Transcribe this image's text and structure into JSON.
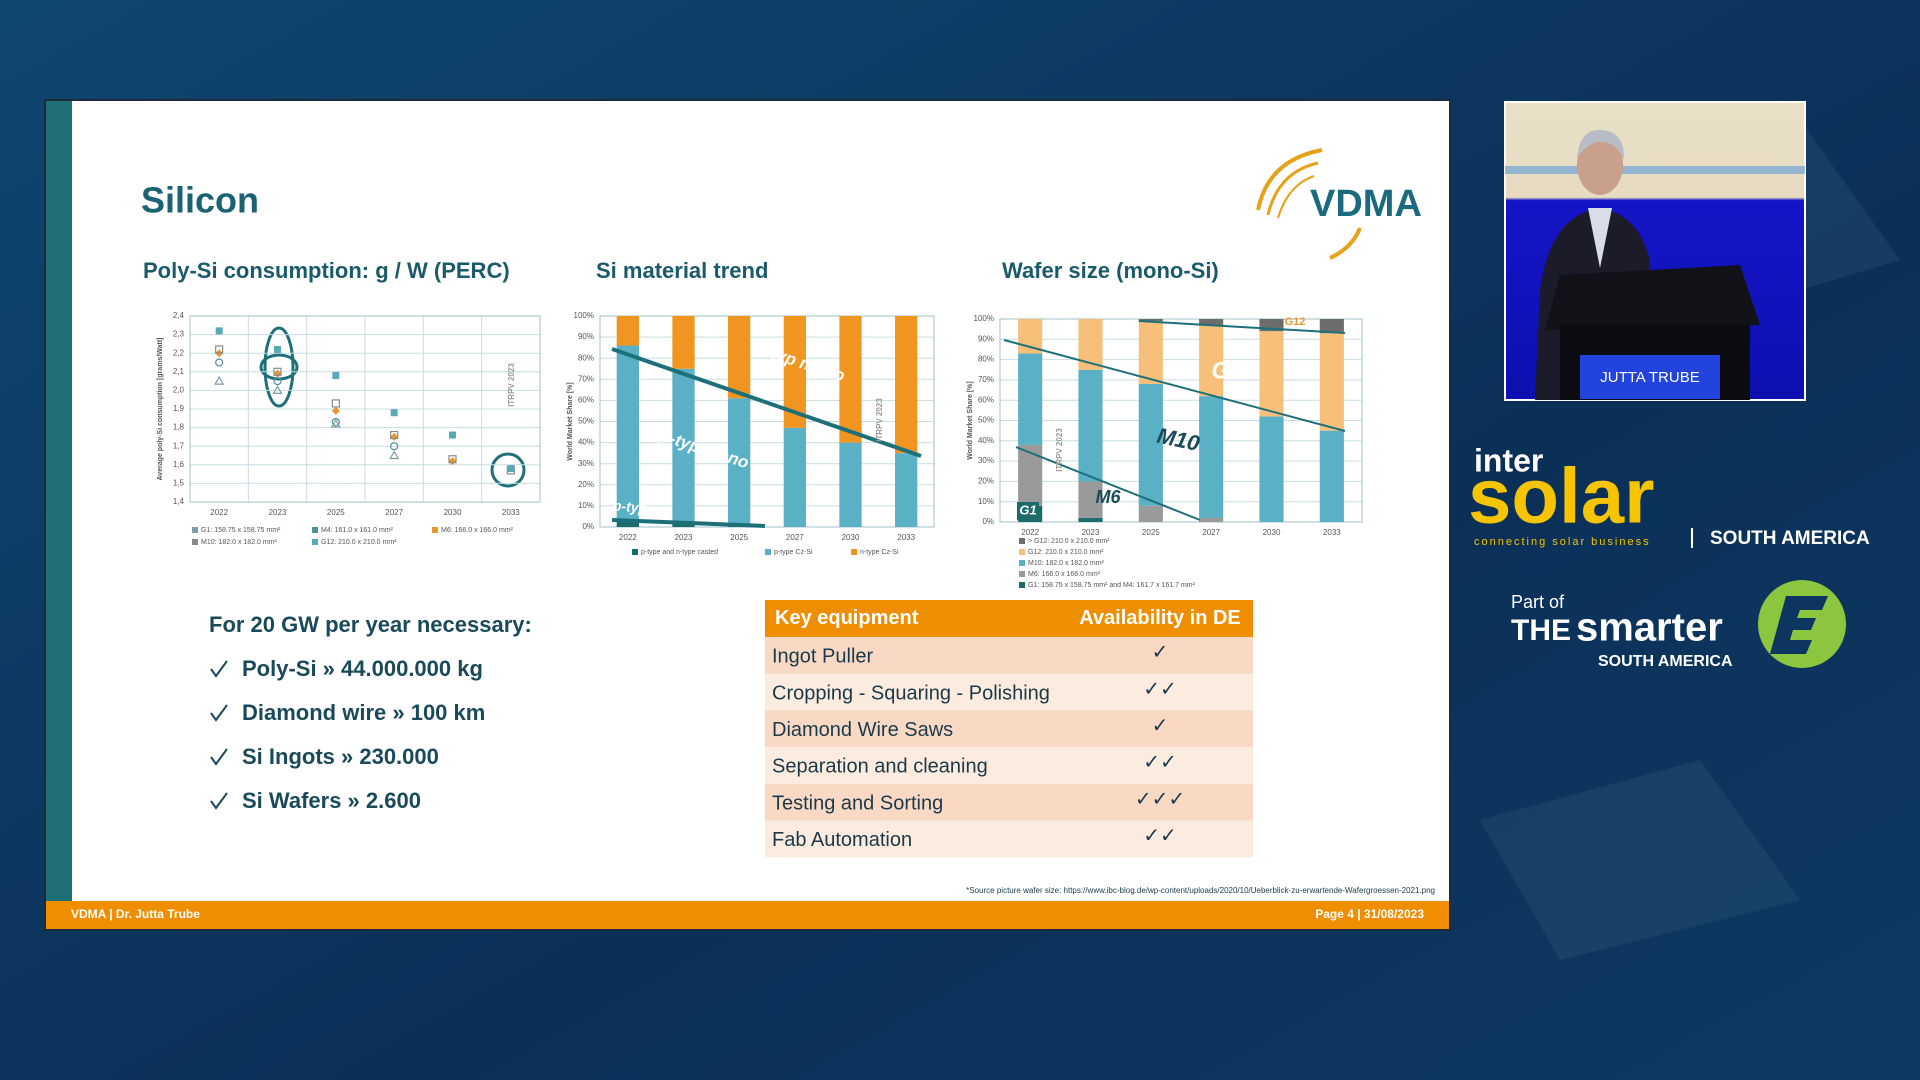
{
  "slide": {
    "title": "Silicon",
    "logo": "VDMA",
    "charts": [
      {
        "type": "scatter",
        "title": "Poly-Si consumption: g / W (PERC)",
        "y_label": "Average poly-Si consumption [grams/Watt]",
        "annotations": [
          "ITRPV 2023"
        ],
        "categories": [
          "2022",
          "2023",
          "2025",
          "2027",
          "2030",
          "2033"
        ],
        "ylim": [
          1.4,
          2.4
        ],
        "yticks": [
          {
            "value": 1.4,
            "label": "1,4"
          },
          {
            "value": 1.5,
            "label": "1,5"
          },
          {
            "value": 1.6,
            "label": "1,6"
          },
          {
            "value": 1.7,
            "label": "1,7"
          },
          {
            "value": 1.8,
            "label": "1,8"
          },
          {
            "value": 1.9,
            "label": "1,9"
          },
          {
            "value": 2.0,
            "label": "2,0"
          },
          {
            "value": 2.1,
            "label": "2,1"
          },
          {
            "value": 2.2,
            "label": "2,2"
          },
          {
            "value": 2.3,
            "label": "2,3"
          },
          {
            "value": 2.4,
            "label": "2,4"
          }
        ],
        "series": [
          {
            "name": "G1: 158.75 x 158.75 mm²",
            "color": "#7d9ca3",
            "marker": "triangle",
            "values": [
              2.05,
              2.0,
              1.82,
              1.65,
              null,
              null
            ]
          },
          {
            "name": "M4: 161.0 x 161.0 mm²",
            "color": "#4f8f9c",
            "marker": "circle",
            "values": [
              2.15,
              2.05,
              1.83,
              1.7,
              null,
              null
            ]
          },
          {
            "name": "M6: 166.0 x 166.0 mm²",
            "color": "#e8962e",
            "marker": "diamond",
            "values": [
              2.2,
              2.09,
              1.89,
              1.75,
              1.62,
              null
            ]
          },
          {
            "name": "M10: 182.0 x 182.0 mm²",
            "color": "#8a8a8a",
            "marker": "hollow-square",
            "values": [
              2.22,
              2.1,
              1.93,
              1.76,
              1.63,
              1.57
            ]
          },
          {
            "name": "G12: 210.0 x 210.0 mm²",
            "color": "#5aa9b8",
            "marker": "square",
            "values": [
              2.32,
              2.22,
              2.08,
              1.88,
              1.76,
              1.58
            ]
          }
        ]
      },
      {
        "type": "stacked_bar",
        "title": "Si material trend",
        "y_label": "World Market Share [%]",
        "annotations": [
          "n-typ mono",
          "p-typ mono",
          "p-typ mc",
          "ITRPV 2023"
        ],
        "categories": [
          "2022",
          "2023",
          "2025",
          "2027",
          "2030",
          "2033"
        ],
        "ylim": [
          0,
          100
        ],
        "yticks": [
          {
            "value": 0,
            "label": "0%"
          },
          {
            "value": 10,
            "label": "10%"
          },
          {
            "value": 20,
            "label": "20%"
          },
          {
            "value": 30,
            "label": "30%"
          },
          {
            "value": 40,
            "label": "40%"
          },
          {
            "value": 50,
            "label": "50%"
          },
          {
            "value": 60,
            "label": "60%"
          },
          {
            "value": 70,
            "label": "70%"
          },
          {
            "value": 80,
            "label": "80%"
          },
          {
            "value": 90,
            "label": "90%"
          },
          {
            "value": 100,
            "label": "100%"
          }
        ],
        "series": [
          {
            "name": "p-type and n-type casted",
            "color": "#1e6b6b",
            "values": [
              3,
              2,
              1,
              0,
              0,
              0
            ]
          },
          {
            "name": "p-type Cz-Si",
            "color": "#5ab0c4",
            "values": [
              83,
              73,
              60,
              47,
              40,
              35
            ]
          },
          {
            "name": "n-type Cz-Si",
            "color": "#f0951f",
            "values": [
              14,
              25,
              39,
              53,
              60,
              65
            ]
          }
        ]
      },
      {
        "type": "stacked_bar",
        "title": "Wafer size (mono-Si)",
        "y_label": "World Market Share [%]",
        "annotations": [
          "G12",
          "M10",
          "M6",
          "G1",
          "G12",
          "ITRPV 2023"
        ],
        "categories": [
          "2022",
          "2023",
          "2025",
          "2027",
          "2030",
          "2033"
        ],
        "ylim": [
          0,
          100
        ],
        "yticks": [
          {
            "value": 0,
            "label": "0%"
          },
          {
            "value": 10,
            "label": "10%"
          },
          {
            "value": 20,
            "label": "20%"
          },
          {
            "value": 30,
            "label": "30%"
          },
          {
            "value": 40,
            "label": "40%"
          },
          {
            "value": 50,
            "label": "50%"
          },
          {
            "value": 60,
            "label": "60%"
          },
          {
            "value": 70,
            "label": "70%"
          },
          {
            "value": 80,
            "label": "80%"
          },
          {
            "value": 90,
            "label": "90%"
          },
          {
            "value": 100,
            "label": "100%"
          }
        ],
        "series": [
          {
            "name": "G1: 158.75 x 158.75 mm² and M4: 161.7 x 161.7 mm²",
            "color": "#1e6b6b",
            "values": [
              8,
              2,
              0,
              0,
              0,
              0
            ]
          },
          {
            "name": "M6: 166.0 x 166.0 mm²",
            "color": "#9a9a9a",
            "values": [
              30,
              18,
              8,
              2,
              0,
              0
            ]
          },
          {
            "name": "M10: 182.0 x 182.0 mm²",
            "color": "#5ab0c4",
            "values": [
              45,
              55,
              60,
              60,
              52,
              45
            ]
          },
          {
            "name": "G12: 210.0 x 210.0 mm²",
            "color": "#f6c07a",
            "values": [
              17,
              25,
              31,
              35,
              42,
              48
            ]
          },
          {
            "name": "> G12: 210.0 x 210.0 mm²",
            "color": "#6d6d6d",
            "values": [
              0,
              0,
              1,
              3,
              6,
              7
            ]
          }
        ]
      }
    ],
    "requirements": {
      "heading": "For 20 GW per year necessary:",
      "items": [
        "Poly-Si » 44.000.000 kg",
        "Diamond wire » 100 km",
        "Si Ingots » 230.000",
        "Si Wafers » 2.600"
      ]
    },
    "table": {
      "header": [
        "Key equipment",
        "Availability in DE"
      ],
      "rows": [
        [
          "Ingot Puller",
          "✓"
        ],
        [
          "Cropping - Squaring - Polishing",
          "✓✓"
        ],
        [
          "Diamond Wire Saws",
          "✓"
        ],
        [
          "Separation and cleaning",
          "✓✓"
        ],
        [
          "Testing and Sorting",
          "✓✓✓"
        ],
        [
          "Fab Automation",
          "✓✓"
        ]
      ]
    },
    "source": "*Source picture wafer size: https://www.ibc-blog.de/wp-content/uploads/2020/10/Ueberblick-zu-erwartende-Wafergroessen-2021.png",
    "footer": {
      "left": "VDMA | Dr. Jutta Trube",
      "right": "Page 4 | 31/08/2023"
    }
  },
  "video": {
    "speaker": "JUTTA TRUBE"
  },
  "branding": {
    "inter": "inter",
    "solar": "solar",
    "tagline": "connecting solar business",
    "region": "SOUTH AMERICA",
    "part_of": "Part of",
    "the": "THE",
    "smarter": "smarter",
    "smarter_region": "SOUTH AMERICA"
  }
}
